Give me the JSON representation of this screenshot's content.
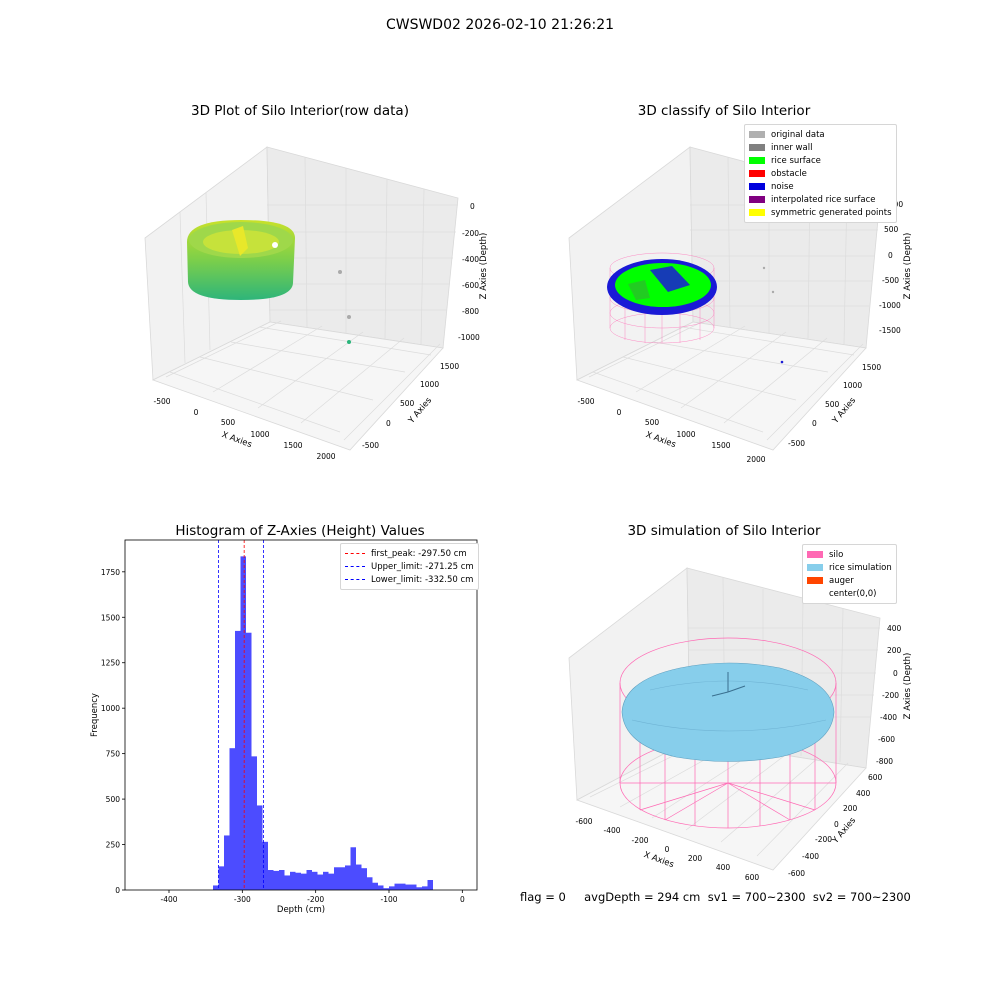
{
  "figure_title": "CWSWD02 2026-02-10 21:26:21",
  "panels": {
    "raw": {
      "title": "3D Plot of Silo Interior(row data)",
      "xlabel": "X Axies",
      "ylabel": "Y Axies",
      "zlabel": "Z Axies (Depth)",
      "xticks": [
        "-500",
        "0",
        "500",
        "1000",
        "1500",
        "2000"
      ],
      "yticks": [
        "1500",
        "1000",
        "500",
        "0",
        "-500"
      ],
      "zticks": [
        "0",
        "-200",
        "-400",
        "-600",
        "-800",
        "-1000"
      ]
    },
    "classify": {
      "title": "3D classify of Silo Interior",
      "xlabel": "X Axies",
      "ylabel": "Y Axies",
      "zlabel": "Z Axies (Depth)",
      "xticks": [
        "-500",
        "0",
        "500",
        "1000",
        "1500",
        "2000"
      ],
      "yticks": [
        "1500",
        "1000",
        "500",
        "0",
        "-500"
      ],
      "zticks": [
        "1000",
        "500",
        "0",
        "-500",
        "-1000",
        "-1500"
      ],
      "legend": [
        {
          "label": "original data",
          "color": "#b0b0b0"
        },
        {
          "label": "inner wall",
          "color": "#808080"
        },
        {
          "label": "rice surface",
          "color": "#00ff00"
        },
        {
          "label": "obstacle",
          "color": "#ff0000"
        },
        {
          "label": "noise",
          "color": "#0000dd"
        },
        {
          "label": "interpolated rice surface",
          "color": "#800080"
        },
        {
          "label": "symmetric generated points",
          "color": "#ffff00"
        }
      ]
    },
    "simulation": {
      "title": "3D simulation of Silo Interior",
      "xlabel": "X Axies",
      "ylabel": "Y Axies",
      "zlabel": "Z Axies (Depth)",
      "xticks": [
        "-600",
        "-400",
        "-200",
        "0",
        "200",
        "400",
        "600"
      ],
      "yticks": [
        "600",
        "400",
        "200",
        "0",
        "-200",
        "-400",
        "-600"
      ],
      "zticks": [
        "400",
        "200",
        "0",
        "-200",
        "-400",
        "-600",
        "-800"
      ],
      "legend": [
        {
          "label": "silo",
          "color": "#ff69b4"
        },
        {
          "label": "rice simulation",
          "color": "#87ceeb"
        },
        {
          "label": "auger",
          "color": "#ff4500"
        },
        {
          "label": "center(0,0)",
          "color": "#ffffff"
        }
      ]
    }
  },
  "chart_data": {
    "type": "bar",
    "title": "Histogram of Z-Axies (Height) Values",
    "xlabel": "Depth (cm)",
    "ylabel": "Frequency",
    "xlim": [
      -460,
      20
    ],
    "ylim": [
      0,
      1925
    ],
    "xticks": [
      -400,
      -300,
      -200,
      -100,
      0
    ],
    "yticks": [
      0,
      250,
      500,
      750,
      1000,
      1250,
      1500,
      1750
    ],
    "bar_color": "#0000ff",
    "bin_width": 7.5,
    "bins_left_edges": [
      -340,
      -332.5,
      -325,
      -317.5,
      -310,
      -302.5,
      -295,
      -287.5,
      -280,
      -272.5,
      -265,
      -257.5,
      -250,
      -242.5,
      -235,
      -227.5,
      -220,
      -212.5,
      -205,
      -197.5,
      -190,
      -182.5,
      -175,
      -167.5,
      -160,
      -152.5,
      -145,
      -137.5,
      -130,
      -122.5,
      -115,
      -107.5,
      -100,
      -92.5,
      -85,
      -77.5,
      -70,
      -62.5,
      -55,
      -47.5,
      -40,
      -32.5,
      -25,
      -17.5,
      -10,
      -2.5
    ],
    "values": [
      25,
      130,
      300,
      780,
      1425,
      1835,
      1415,
      735,
      465,
      265,
      110,
      105,
      110,
      80,
      100,
      95,
      90,
      110,
      100,
      85,
      100,
      90,
      125,
      125,
      135,
      235,
      140,
      120,
      70,
      40,
      25,
      10,
      20,
      35,
      35,
      30,
      30,
      15,
      20,
      55,
      0,
      0,
      0,
      0,
      0,
      0
    ],
    "vlines": [
      {
        "label": "first_peak: -297.50 cm",
        "x": -297.5,
        "color": "#ff0000"
      },
      {
        "label": "Upper_limit: -271.25 cm",
        "x": -271.25,
        "color": "#0000ff"
      },
      {
        "label": "Lower_limit: -332.50 cm",
        "x": -332.5,
        "color": "#0000ff"
      }
    ],
    "legend_position": "top-right"
  },
  "footer": "flag = 0     avgDepth = 294 cm  sv1 = 700~2300  sv2 = 700~2300"
}
